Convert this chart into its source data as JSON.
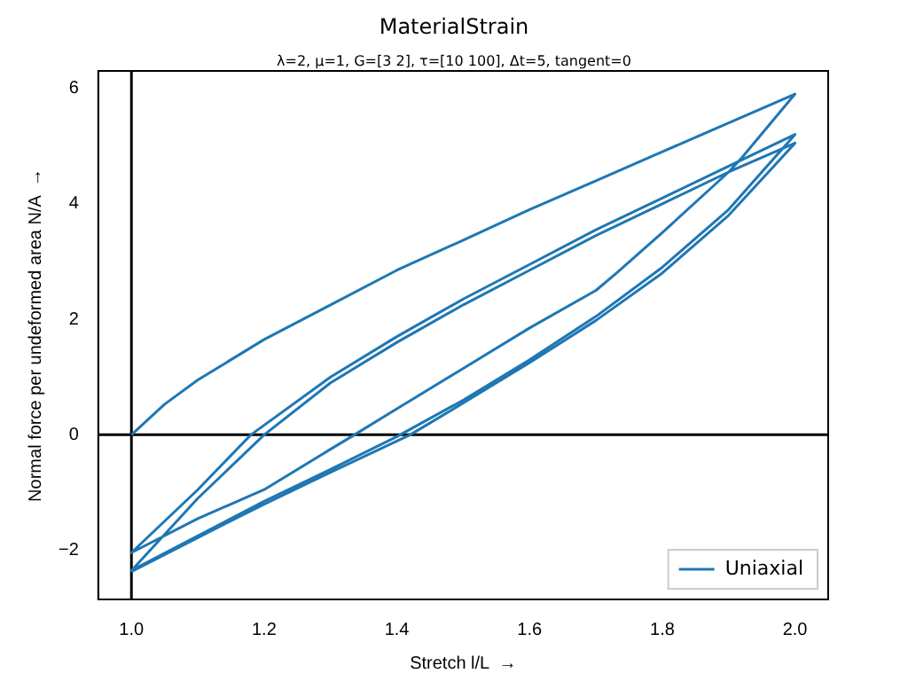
{
  "chart_data": {
    "type": "line",
    "title": "MaterialStrain",
    "subtitle": "λ=2, μ=1, G=[3 2], τ=[10 100], Δt=5, tangent=0",
    "xlabel": "Stretch l/L  →",
    "ylabel": "Normal force per undeformed area N/A  →",
    "series": [
      {
        "name": "Uniaxial",
        "color": "#1f77b4",
        "x": [
          1.0,
          1.05,
          1.1,
          1.2,
          1.3,
          1.4,
          1.5,
          1.6,
          1.7,
          1.8,
          1.9,
          2.0,
          1.92,
          1.9,
          1.8,
          1.73,
          1.7,
          1.6,
          1.5,
          1.4,
          1.336,
          1.3,
          1.2,
          1.1,
          1.0,
          1.1,
          1.18,
          1.3,
          1.4,
          1.5,
          1.6,
          1.7,
          1.8,
          1.9,
          2.0,
          1.9,
          1.8,
          1.7,
          1.6,
          1.5,
          1.4,
          1.3,
          1.2,
          1.1,
          1.0,
          1.1,
          1.2,
          1.3,
          1.4,
          1.5,
          1.6,
          1.7,
          1.8,
          1.9,
          2.0,
          1.9,
          1.8,
          1.7,
          1.6,
          1.5,
          1.42,
          1.3,
          1.2,
          1.1,
          1.0
        ],
        "values": [
          0,
          0.53,
          0.95,
          1.65,
          2.25,
          2.85,
          3.37,
          3.9,
          4.4,
          4.9,
          5.4,
          5.9,
          4.8,
          4.55,
          3.5,
          2.79,
          2.5,
          1.85,
          1.15,
          0.45,
          0,
          -0.25,
          -0.95,
          -1.45,
          -2.04,
          -0.95,
          0,
          1.0,
          1.7,
          2.35,
          2.95,
          3.55,
          4.1,
          4.65,
          5.2,
          3.9,
          2.9,
          2.05,
          1.3,
          0.6,
          -0.03,
          -0.6,
          -1.15,
          -1.75,
          -2.35,
          -1.1,
          0,
          0.9,
          1.6,
          2.25,
          2.85,
          3.45,
          4.0,
          4.55,
          5.05,
          3.8,
          2.8,
          1.98,
          1.25,
          0.55,
          0,
          -0.65,
          -1.2,
          -1.78,
          -2.37
        ]
      }
    ],
    "xlim": [
      0.95,
      2.05
    ],
    "ylim": [
      -2.85,
      6.3
    ],
    "xticks": [
      {
        "value": 1.0,
        "label": "1.0"
      },
      {
        "value": 1.2,
        "label": "1.2"
      },
      {
        "value": 1.4,
        "label": "1.4"
      },
      {
        "value": 1.6,
        "label": "1.6"
      },
      {
        "value": 1.8,
        "label": "1.8"
      },
      {
        "value": 2.0,
        "label": "2.0"
      }
    ],
    "yticks": [
      {
        "value": -2,
        "label": "−2"
      },
      0,
      2,
      4,
      6
    ],
    "ref_lines": [
      {
        "axis": "y",
        "value": 0,
        "color": "#000000"
      },
      {
        "axis": "x",
        "value": 1.0,
        "color": "#000000"
      }
    ],
    "legend": "bottom right",
    "grid": false,
    "marker": "none",
    "line_style": "solid"
  }
}
